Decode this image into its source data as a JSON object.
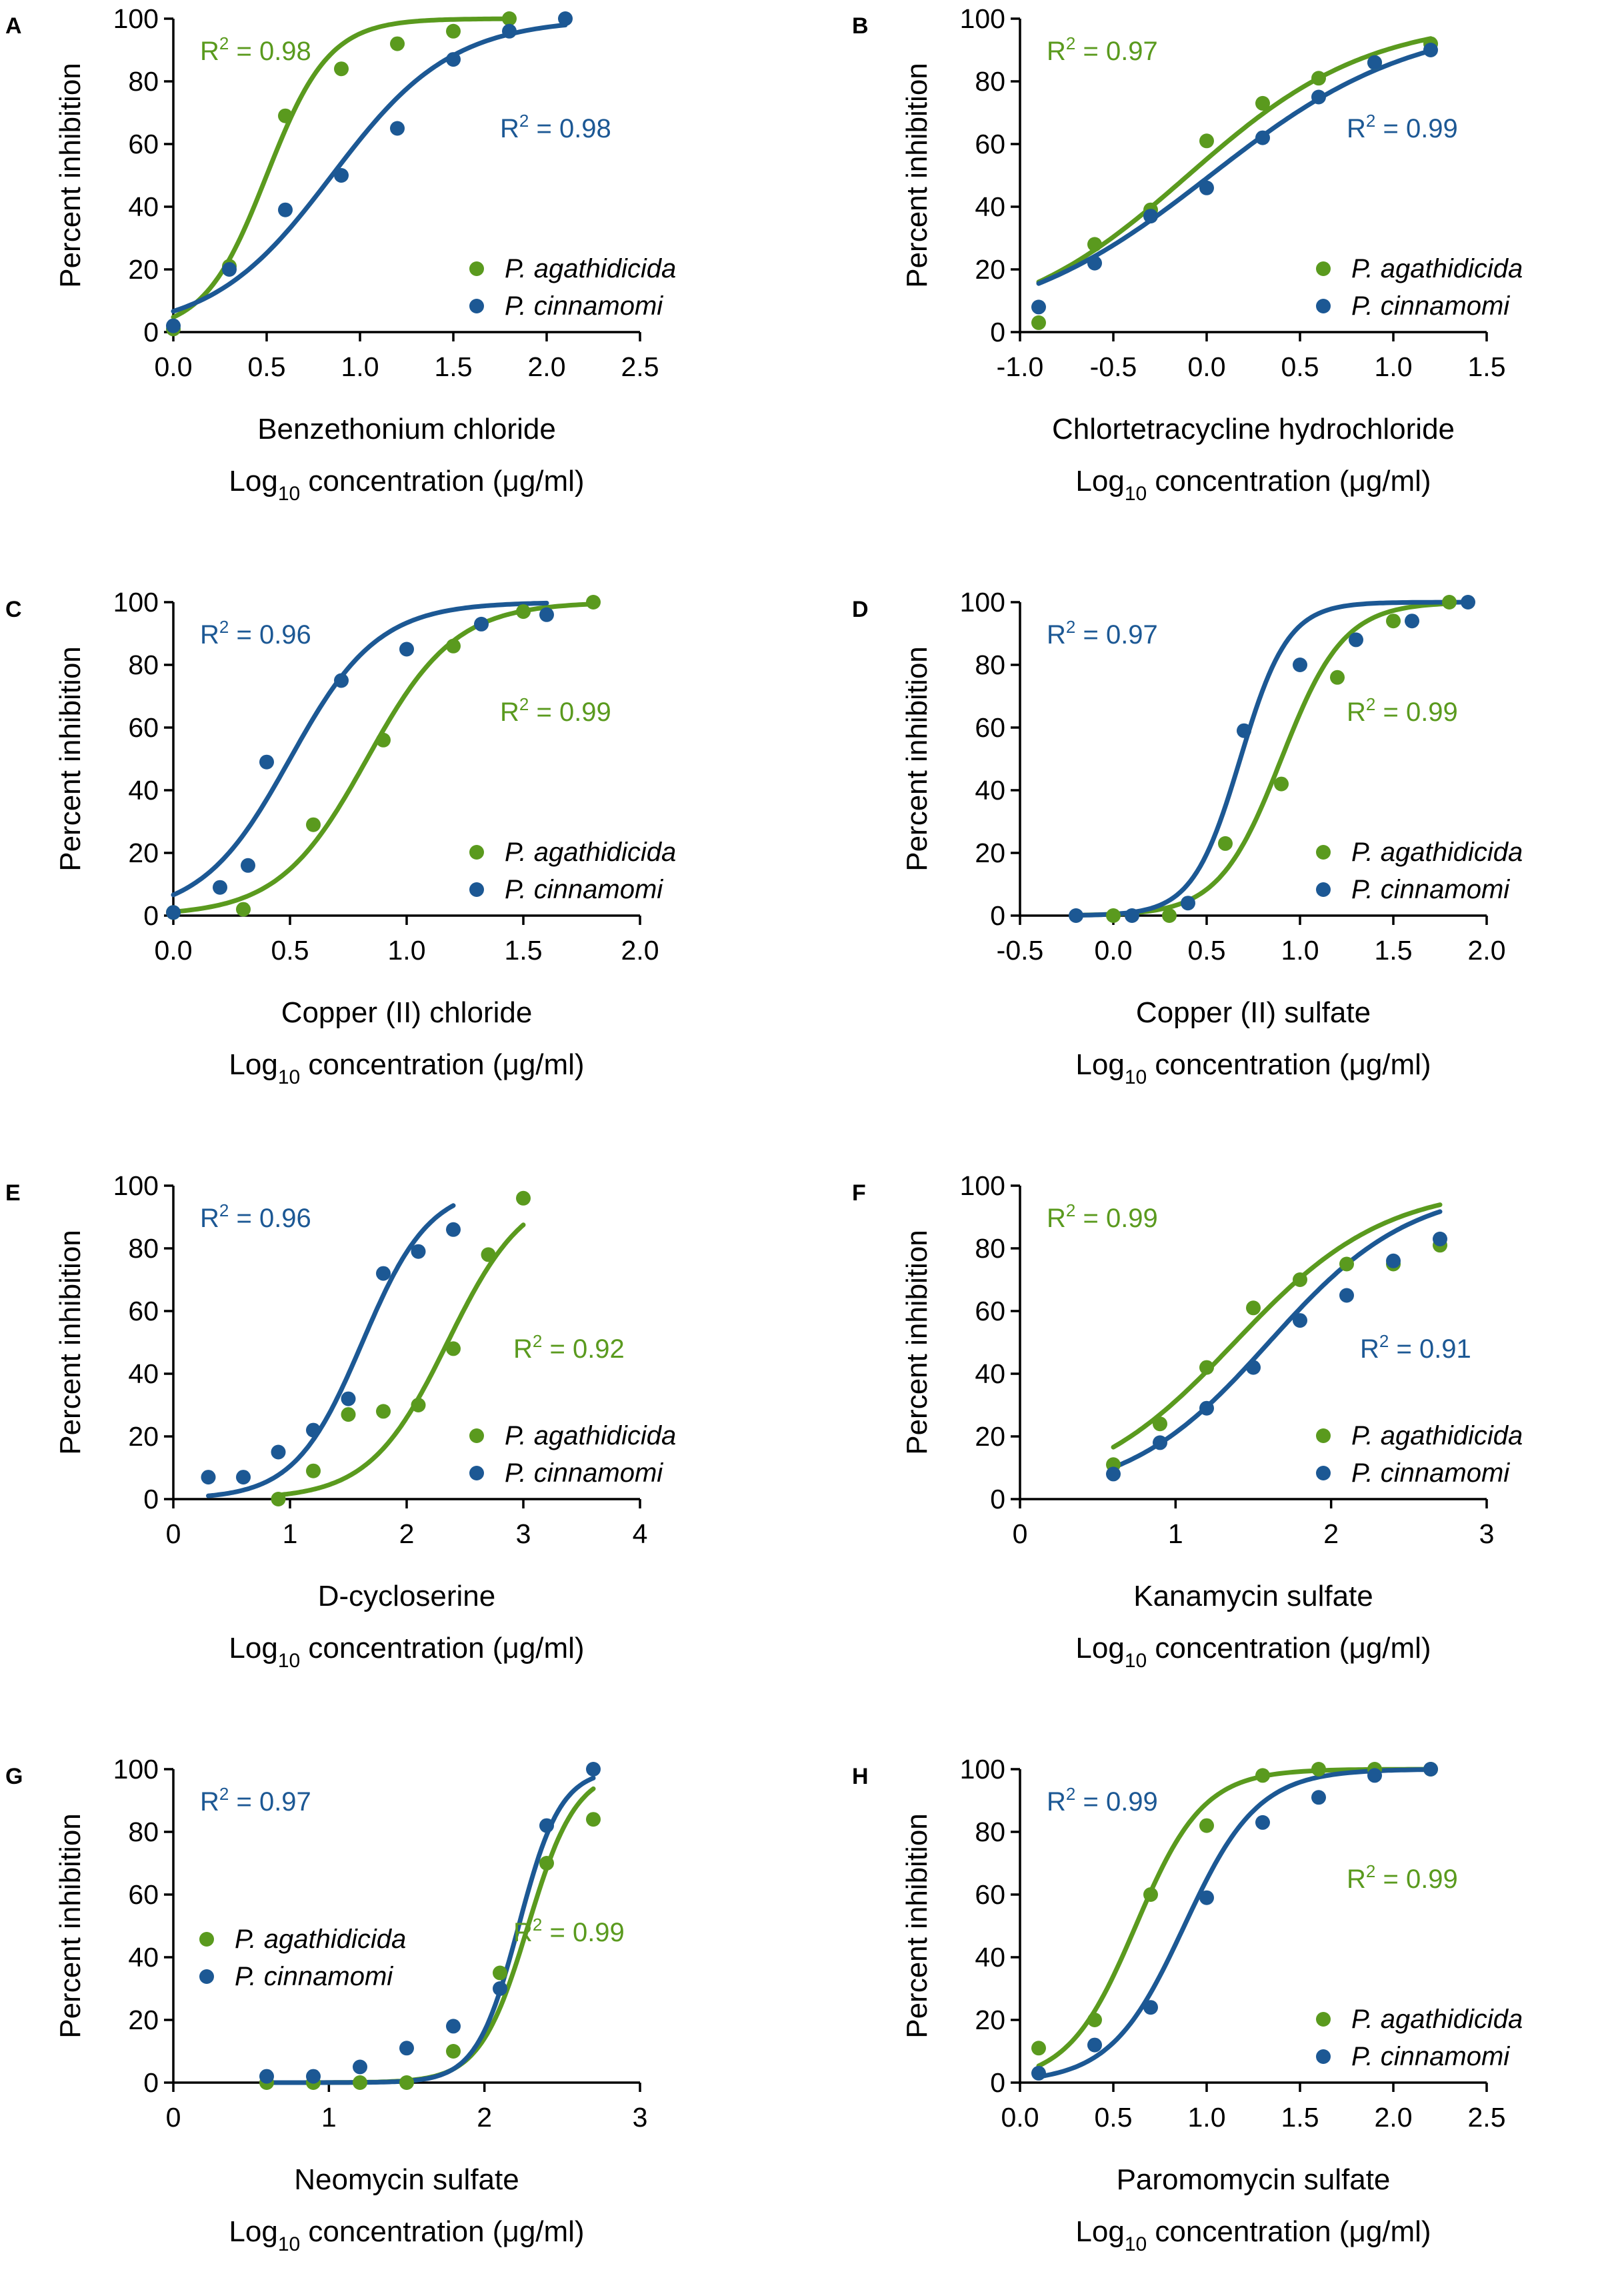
{
  "figure": {
    "series_names": [
      "P. agathidicida",
      "P. cinnamomi"
    ],
    "colors": {
      "agathidicida": "#5a9a1e",
      "cinnamomi": "#1c5894",
      "axis": "#000000"
    },
    "ylabel": "Percent inhibition",
    "conc_prefix": "Log",
    "conc_sub": "10",
    "conc_suffix": "concentration (μg/ml)",
    "r2_label": "R"
  },
  "chart_data": [
    {
      "panel": "A",
      "type": "scatter",
      "title": "Benzethonium chloride",
      "xlim": [
        0,
        2.5
      ],
      "xticks": [
        0.0,
        0.5,
        1.0,
        1.5,
        2.0,
        2.5
      ],
      "tick_decimals": 1,
      "ylim": [
        0,
        100
      ],
      "yticks": [
        0,
        20,
        40,
        60,
        80,
        100
      ],
      "legend_position": "bottom-right",
      "series": [
        {
          "name": "P. agathidicida",
          "r2": "0.98",
          "r2_position": "top-left",
          "x": [
            0.0,
            0.3,
            0.6,
            0.9,
            1.2,
            1.5,
            1.8
          ],
          "y": [
            1,
            21,
            69,
            84,
            92,
            96,
            100
          ],
          "fit": {
            "ec50": 0.5,
            "hill": 2.6,
            "bottom": 0,
            "top": 100,
            "x_from": 0.0,
            "x_to": 1.8
          }
        },
        {
          "name": "P. cinnamomi",
          "r2": "0.98",
          "r2_position": "top-right",
          "x": [
            0.0,
            0.3,
            0.6,
            0.9,
            1.2,
            1.5,
            1.8,
            2.1
          ],
          "y": [
            2,
            20,
            39,
            50,
            65,
            87,
            96,
            100
          ],
          "fit": {
            "ec50": 0.85,
            "hill": 1.35,
            "bottom": 0,
            "top": 100,
            "x_from": 0.0,
            "x_to": 2.1
          }
        }
      ]
    },
    {
      "panel": "B",
      "type": "scatter",
      "title": "Chlortetracycline hydrochloride",
      "xlim": [
        -1.0,
        1.5
      ],
      "xticks": [
        -1.0,
        -0.5,
        0.0,
        0.5,
        1.0,
        1.5
      ],
      "tick_decimals": 1,
      "ylim": [
        0,
        100
      ],
      "yticks": [
        0,
        20,
        40,
        60,
        80,
        100
      ],
      "legend_position": "bottom-right",
      "series": [
        {
          "name": "P. agathidicida",
          "r2": "0.97",
          "r2_position": "top-left",
          "x": [
            -0.9,
            -0.6,
            -0.3,
            0.0,
            0.3,
            0.6,
            0.9,
            1.2
          ],
          "y": [
            3,
            28,
            39,
            61,
            73,
            81,
            86,
            92
          ],
          "fit": {
            "ec50": -0.1,
            "hill": 0.9,
            "bottom": 0,
            "top": 100,
            "x_from": -0.9,
            "x_to": 1.2
          }
        },
        {
          "name": "P. cinnamomi",
          "r2": "0.99",
          "r2_position": "top-right",
          "x": [
            -0.9,
            -0.6,
            -0.3,
            0.0,
            0.3,
            0.6,
            0.9,
            1.2
          ],
          "y": [
            8,
            22,
            37,
            46,
            62,
            75,
            86,
            90
          ],
          "fit": {
            "ec50": 0.02,
            "hill": 0.8,
            "bottom": 0,
            "top": 100,
            "x_from": -0.9,
            "x_to": 1.2
          }
        }
      ]
    },
    {
      "panel": "C",
      "type": "scatter",
      "title": "Copper (II) chloride",
      "xlim": [
        0,
        2.0
      ],
      "xticks": [
        0.0,
        0.5,
        1.0,
        1.5,
        2.0
      ],
      "tick_decimals": 1,
      "ylim": [
        0,
        100
      ],
      "yticks": [
        0,
        20,
        40,
        60,
        80,
        100
      ],
      "legend_position": "bottom-right",
      "series": [
        {
          "name": "P. agathidicida",
          "r2": "0.99",
          "r2_position": "top-right",
          "x": [
            0.0,
            0.3,
            0.6,
            0.9,
            1.2,
            1.5,
            1.8
          ],
          "y": [
            1,
            2,
            29,
            56,
            86,
            97,
            100
          ],
          "fit": {
            "ec50": 0.83,
            "hill": 2.3,
            "bottom": 0,
            "top": 100,
            "x_from": 0.0,
            "x_to": 1.8
          }
        },
        {
          "name": "P. cinnamomi",
          "r2": "0.96",
          "r2_position": "top-left",
          "x": [
            0.0,
            0.2,
            0.32,
            0.4,
            0.72,
            1.0,
            1.32,
            1.6
          ],
          "y": [
            1,
            9,
            16,
            49,
            75,
            85,
            93,
            96
          ],
          "fit": {
            "ec50": 0.5,
            "hill": 2.3,
            "bottom": 0,
            "top": 100,
            "x_from": 0.0,
            "x_to": 1.6
          }
        }
      ]
    },
    {
      "panel": "D",
      "type": "scatter",
      "title": "Copper (II) sulfate",
      "xlim": [
        -0.5,
        2.0
      ],
      "xticks": [
        -0.5,
        0.0,
        0.5,
        1.0,
        1.5,
        2.0
      ],
      "tick_decimals": 1,
      "ylim": [
        0,
        100
      ],
      "yticks": [
        0,
        20,
        40,
        60,
        80,
        100
      ],
      "legend_position": "bottom-right",
      "series": [
        {
          "name": "P. agathidicida",
          "r2": "0.99",
          "r2_position": "top-right",
          "x": [
            0.0,
            0.3,
            0.6,
            0.9,
            1.2,
            1.5,
            1.8
          ],
          "y": [
            0,
            0,
            23,
            42,
            76,
            94,
            100
          ],
          "fit": {
            "ec50": 0.9,
            "hill": 2.6,
            "bottom": 0,
            "top": 100,
            "x_from": -0.2,
            "x_to": 1.8
          }
        },
        {
          "name": "P. cinnamomi",
          "r2": "0.97",
          "r2_position": "top-left",
          "x": [
            -0.2,
            0.1,
            0.4,
            0.7,
            1.0,
            1.3,
            1.6,
            1.9
          ],
          "y": [
            0,
            0,
            4,
            59,
            80,
            88,
            94,
            100
          ],
          "fit": {
            "ec50": 0.68,
            "hill": 3.4,
            "bottom": 0,
            "top": 100,
            "x_from": -0.2,
            "x_to": 1.9
          }
        }
      ]
    },
    {
      "panel": "E",
      "type": "scatter",
      "title": "D-cycloserine",
      "xlim": [
        0,
        4
      ],
      "xticks": [
        0,
        1,
        2,
        3,
        4
      ],
      "tick_decimals": 0,
      "ylim": [
        0,
        100
      ],
      "yticks": [
        0,
        20,
        40,
        60,
        80,
        100
      ],
      "legend_position": "bottom-right",
      "series": [
        {
          "name": "P. agathidicida",
          "r2": "0.92",
          "r2_position": "middle-right",
          "x": [
            0.9,
            1.2,
            1.5,
            1.8,
            2.1,
            2.4,
            2.7,
            3.0
          ],
          "y": [
            0,
            9,
            27,
            28,
            30,
            48,
            78,
            96
          ],
          "fit": {
            "ec50": 2.35,
            "hill": 1.3,
            "bottom": 0,
            "top": 100,
            "x_from": 0.9,
            "x_to": 3.0
          }
        },
        {
          "name": "P. cinnamomi",
          "r2": "0.96",
          "r2_position": "top-left",
          "x": [
            0.3,
            0.6,
            0.9,
            1.2,
            1.5,
            1.8,
            2.1,
            2.4
          ],
          "y": [
            7,
            7,
            15,
            22,
            32,
            72,
            79,
            86
          ],
          "fit": {
            "ec50": 1.62,
            "hill": 1.5,
            "bottom": 0,
            "top": 100,
            "x_from": 0.3,
            "x_to": 2.4
          }
        }
      ]
    },
    {
      "panel": "F",
      "type": "scatter",
      "title": "Kanamycin sulfate",
      "xlim": [
        0,
        3
      ],
      "xticks": [
        0,
        1,
        2,
        3
      ],
      "tick_decimals": 0,
      "ylim": [
        0,
        100
      ],
      "yticks": [
        0,
        20,
        40,
        60,
        80,
        100
      ],
      "legend_position": "bottom-right",
      "series": [
        {
          "name": "P. agathidicida",
          "r2": "0.99",
          "r2_position": "top-left",
          "x": [
            0.6,
            0.9,
            1.2,
            1.5,
            1.8,
            2.1,
            2.4,
            2.7
          ],
          "y": [
            11,
            24,
            42,
            61,
            70,
            75,
            75,
            81
          ],
          "fit": {
            "ec50": 1.38,
            "hill": 0.9,
            "bottom": 0,
            "top": 100,
            "x_from": 0.6,
            "x_to": 2.7
          }
        },
        {
          "name": "P. cinnamomi",
          "r2": "0.91",
          "r2_position": "middle-right",
          "x": [
            0.6,
            0.9,
            1.2,
            1.5,
            1.8,
            2.1,
            2.4,
            2.7
          ],
          "y": [
            8,
            18,
            29,
            42,
            57,
            65,
            76,
            83
          ],
          "fit": {
            "ec50": 1.6,
            "hill": 0.95,
            "bottom": 0,
            "top": 100,
            "x_from": 0.6,
            "x_to": 2.7
          }
        }
      ]
    },
    {
      "panel": "G",
      "type": "scatter",
      "title": "Neomycin sulfate",
      "xlim": [
        0,
        3
      ],
      "xticks": [
        0,
        1,
        2,
        3
      ],
      "tick_decimals": 0,
      "ylim": [
        0,
        100
      ],
      "yticks": [
        0,
        20,
        40,
        60,
        80,
        100
      ],
      "legend_position": "middle-left",
      "series": [
        {
          "name": "P. agathidicida",
          "r2": "0.99",
          "r2_position": "middle-right",
          "x": [
            0.6,
            0.9,
            1.2,
            1.5,
            1.8,
            2.1,
            2.4,
            2.7
          ],
          "y": [
            0,
            0,
            0,
            0,
            10,
            35,
            70,
            84
          ],
          "fit": {
            "ec50": 2.28,
            "hill": 2.8,
            "bottom": 0,
            "top": 100,
            "x_from": 0.6,
            "x_to": 2.7
          }
        },
        {
          "name": "P. cinnamomi",
          "r2": "0.97",
          "r2_position": "top-left",
          "x": [
            0.6,
            0.9,
            1.2,
            1.5,
            1.8,
            2.1,
            2.4,
            2.7
          ],
          "y": [
            2,
            2,
            5,
            11,
            18,
            30,
            82,
            100
          ],
          "fit": {
            "ec50": 2.22,
            "hill": 3.2,
            "bottom": 0,
            "top": 100,
            "x_from": 0.6,
            "x_to": 2.7
          }
        }
      ]
    },
    {
      "panel": "H",
      "type": "scatter",
      "title": "Paromomycin sulfate",
      "xlim": [
        0,
        2.5
      ],
      "xticks": [
        0.0,
        0.5,
        1.0,
        1.5,
        2.0,
        2.5
      ],
      "tick_decimals": 1,
      "ylim": [
        0,
        100
      ],
      "yticks": [
        0,
        20,
        40,
        60,
        80,
        100
      ],
      "legend_position": "bottom-right",
      "series": [
        {
          "name": "P. agathidicida",
          "r2": "0.99",
          "r2_position": "top-right",
          "x": [
            0.1,
            0.4,
            0.7,
            1.0,
            1.3,
            1.6,
            1.9,
            2.2
          ],
          "y": [
            11,
            20,
            60,
            82,
            98,
            100,
            100,
            100
          ],
          "fit": {
            "ec50": 0.62,
            "hill": 2.4,
            "bottom": 0,
            "top": 100,
            "x_from": 0.1,
            "x_to": 2.2
          }
        },
        {
          "name": "P. cinnamomi",
          "r2": "0.99",
          "r2_position": "top-left",
          "x": [
            0.1,
            0.4,
            0.7,
            1.0,
            1.3,
            1.6,
            1.9,
            2.2
          ],
          "y": [
            3,
            12,
            24,
            59,
            83,
            91,
            98,
            100
          ],
          "fit": {
            "ec50": 0.88,
            "hill": 2.2,
            "bottom": 0,
            "top": 100,
            "x_from": 0.1,
            "x_to": 2.2
          }
        }
      ]
    }
  ]
}
